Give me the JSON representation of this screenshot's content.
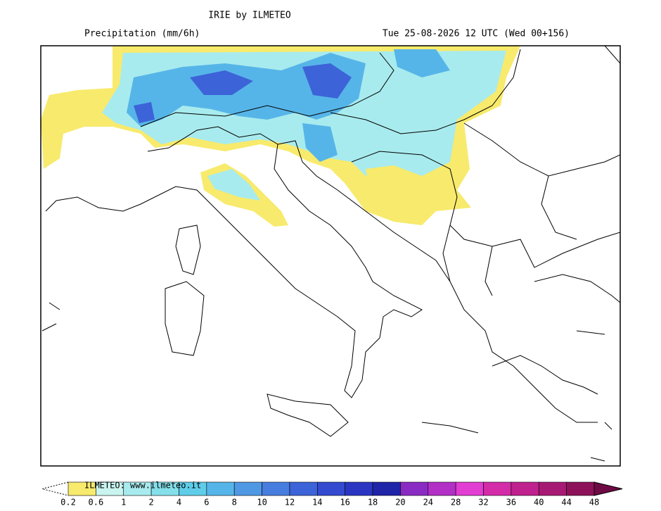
{
  "header": {
    "title": "IRIE by ILMETEO",
    "subtitle": "Precipitation (mm/6h)",
    "valid_time": "Tue 25-08-2026 12 UTC (Wed 00+156)"
  },
  "legend": {
    "watermark": "ILMETEO: www.ilmeteo.it",
    "labels": [
      0.2,
      0.6,
      1,
      2,
      4,
      6,
      8,
      10,
      12,
      14,
      16,
      18,
      20,
      24,
      28,
      32,
      36,
      40,
      44,
      48
    ],
    "colors": [
      "#f8ea6c",
      "#c9f4ef",
      "#a8ebee",
      "#84dfea",
      "#5fcde9",
      "#56b5e8",
      "#4f98e3",
      "#477ddf",
      "#3d63d8",
      "#344bcf",
      "#2a36c2",
      "#1f24a8",
      "#8a2cc3",
      "#b230c6",
      "#e23dd2",
      "#d42ba9",
      "#bf218e",
      "#a71a74",
      "#8d1259"
    ]
  }
}
